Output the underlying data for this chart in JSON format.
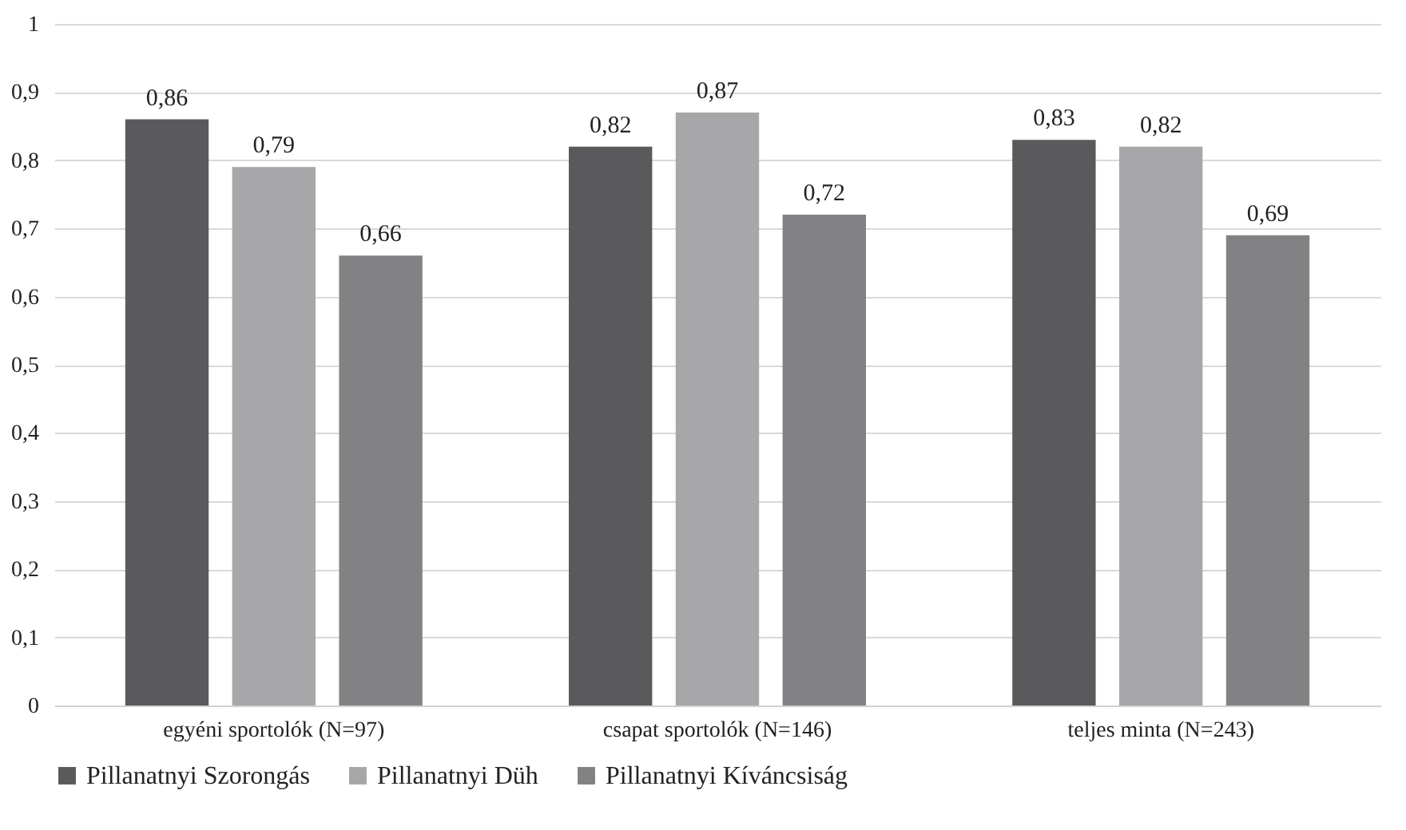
{
  "chart_data": {
    "type": "bar",
    "categories": [
      "egyéni sportolók (N=97)",
      "csapat sportolók (N=146)",
      "teljes minta (N=243)"
    ],
    "series": [
      {
        "name": "Pillanatnyi Szorongás",
        "color": "#5a5a5c",
        "values": [
          0.86,
          0.82,
          0.83
        ],
        "value_labels": [
          "0,86",
          "0,82",
          "0,83"
        ]
      },
      {
        "name": "Pillanatnyi Düh",
        "color": "#a7a7a9",
        "values": [
          0.79,
          0.87,
          0.82
        ],
        "value_labels": [
          "0,79",
          "0,87",
          "0,82"
        ]
      },
      {
        "name": "Pillanatnyi Kíváncsiság",
        "color": "#828284",
        "values": [
          0.66,
          0.72,
          0.69
        ],
        "value_labels": [
          "0,66",
          "0,72",
          "0,69"
        ]
      }
    ],
    "ylim": [
      0,
      1
    ],
    "yticks": [
      0,
      {
        "value": 0.1,
        "label": "0,1"
      },
      {
        "value": 0.2,
        "label": "0,2"
      },
      {
        "value": 0.3,
        "label": "0,3"
      },
      {
        "value": 0.4,
        "label": "0,4"
      },
      {
        "value": 0.5,
        "label": "0,5"
      },
      {
        "value": 0.6,
        "label": "0,6"
      },
      {
        "value": 0.7,
        "label": "0,7"
      },
      {
        "value": 0.8,
        "label": "0,8"
      },
      {
        "value": 0.9,
        "label": "0,9"
      },
      1
    ],
    "grid": "y",
    "legend": "bottom"
  }
}
